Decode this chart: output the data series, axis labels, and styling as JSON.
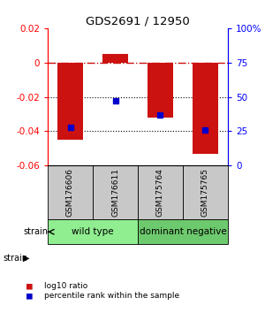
{
  "title": "GDS2691 / 12950",
  "samples": [
    "GSM176606",
    "GSM176611",
    "GSM175764",
    "GSM175765"
  ],
  "log10_ratio": [
    -0.045,
    0.005,
    -0.032,
    -0.053
  ],
  "percentile_rank": [
    28,
    47,
    37,
    26
  ],
  "groups": [
    {
      "label": "wild type",
      "samples": [
        0,
        1
      ],
      "color": "#90EE90"
    },
    {
      "label": "dominant negative",
      "samples": [
        2,
        3
      ],
      "color": "#6DC96D"
    }
  ],
  "ylim_left": [
    -0.06,
    0.02
  ],
  "ylim_right": [
    0,
    100
  ],
  "bar_color": "#CC1111",
  "dot_color": "#0000CC",
  "dotted_lines": [
    -0.02,
    -0.04
  ],
  "right_ticks": [
    0,
    25,
    50,
    75,
    100
  ],
  "right_tick_labels": [
    "0",
    "25",
    "50",
    "75",
    "100%"
  ],
  "left_ticks": [
    -0.06,
    -0.04,
    -0.02,
    0,
    0.02
  ],
  "left_tick_labels": [
    "-0.06",
    "-0.04",
    "-0.02",
    "0",
    "0.02"
  ],
  "sample_box_color": "#C8C8C8",
  "strain_label": "strain",
  "legend_items": [
    {
      "color": "#CC1111",
      "label": "log10 ratio"
    },
    {
      "color": "#0000CC",
      "label": "percentile rank within the sample"
    }
  ]
}
